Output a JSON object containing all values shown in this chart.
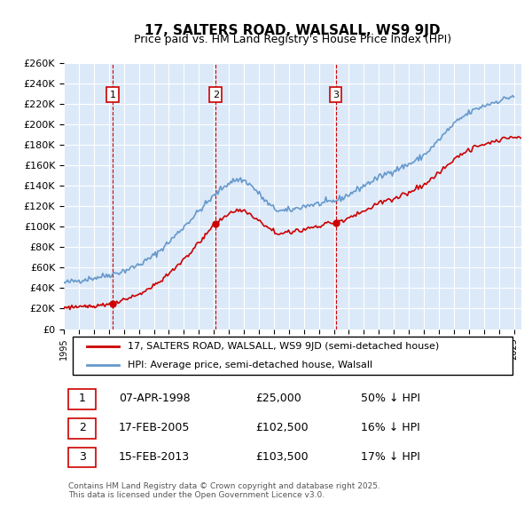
{
  "title": "17, SALTERS ROAD, WALSALL, WS9 9JD",
  "subtitle": "Price paid vs. HM Land Registry's House Price Index (HPI)",
  "ylabel": "",
  "xlabel": "",
  "ylim": [
    0,
    260000
  ],
  "yticks": [
    0,
    20000,
    40000,
    60000,
    80000,
    100000,
    120000,
    140000,
    160000,
    180000,
    200000,
    220000,
    240000,
    260000
  ],
  "ytick_labels": [
    "£0",
    "£20K",
    "£40K",
    "£60K",
    "£80K",
    "£100K",
    "£120K",
    "£140K",
    "£160K",
    "£180K",
    "£200K",
    "£220K",
    "£240K",
    "£260K"
  ],
  "sales": [
    {
      "date_num": 1998.27,
      "price": 25000,
      "label": "1",
      "date_str": "07-APR-1998",
      "pct": "50%"
    },
    {
      "date_num": 2005.12,
      "price": 102500,
      "label": "2",
      "date_str": "17-FEB-2005",
      "pct": "16%"
    },
    {
      "date_num": 2013.12,
      "price": 103500,
      "label": "3",
      "date_str": "15-FEB-2013",
      "pct": "17%"
    }
  ],
  "legend_line1": "17, SALTERS ROAD, WALSALL, WS9 9JD (semi-detached house)",
  "legend_line2": "HPI: Average price, semi-detached house, Walsall",
  "footnote": "Contains HM Land Registry data © Crown copyright and database right 2025.\nThis data is licensed under the Open Government Licence v3.0.",
  "bg_color": "#dce9f8",
  "plot_bg": "#dce9f8",
  "grid_color": "#ffffff",
  "red_line_color": "#cc0000",
  "blue_line_color": "#6699cc",
  "vline_color": "#cc0000",
  "box_color": "#cc0000",
  "xmin": 1995.0,
  "xmax": 2025.5
}
